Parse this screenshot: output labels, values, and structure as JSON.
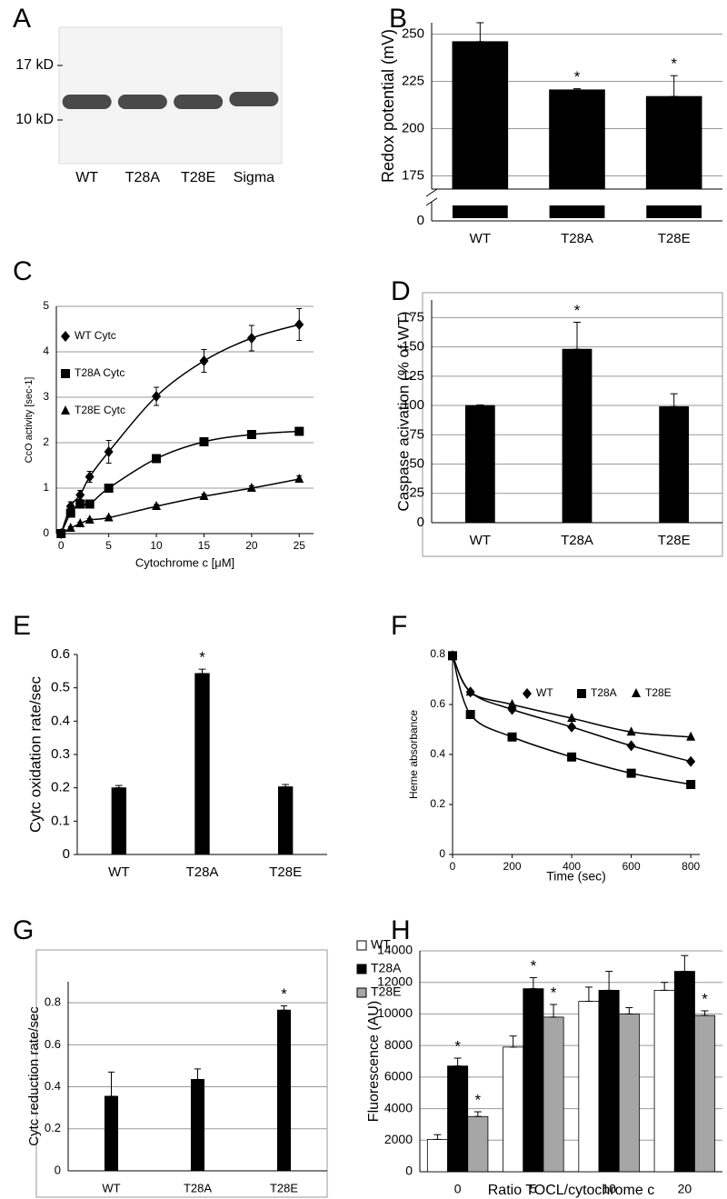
{
  "chart_data": [
    {
      "type": "blot",
      "panel": "A",
      "markers": [
        "17 kD",
        "10 kD"
      ],
      "categories": [
        "WT",
        "T28A",
        "T28E",
        "Sigma"
      ]
    },
    {
      "type": "bar",
      "panel": "B",
      "y_label": "Redox potential (mV)",
      "categories": [
        "WT",
        "T28A",
        "T28E"
      ],
      "values": [
        246,
        220.5,
        217
      ],
      "errors": [
        10,
        0.6,
        11
      ],
      "significance": [
        null,
        "*",
        "*"
      ],
      "color": "#000000",
      "ylim": [
        168,
        256
      ],
      "yticks": [
        0,
        175,
        200,
        225,
        250
      ],
      "axis_break": true,
      "grid": true
    },
    {
      "type": "scatter",
      "panel": "C",
      "x_label": "Cytochrome c [μM]",
      "y_label": "CcO activity [sec-1]",
      "x": [
        0,
        1,
        2,
        3,
        5,
        10,
        15,
        20,
        25
      ],
      "series": [
        {
          "name": "WT Cytc",
          "marker": "diamond",
          "color": "#000000",
          "values": [
            0,
            0.6,
            0.85,
            1.25,
            1.8,
            3.02,
            3.8,
            4.3,
            4.6
          ],
          "errors": [
            0.05,
            0.1,
            0.1,
            0.12,
            0.25,
            0.2,
            0.25,
            0.28,
            0.35
          ]
        },
        {
          "name": "T28A Cytc",
          "marker": "square",
          "color": "#000000",
          "values": [
            0,
            0.45,
            0.65,
            0.65,
            1.0,
            1.65,
            2.02,
            2.18,
            2.25
          ],
          "errors": [
            0.03,
            0.05,
            0.05,
            0.05,
            0.05,
            0.05,
            0.05,
            0.05,
            0.06
          ]
        },
        {
          "name": "T28E Cytc",
          "marker": "triangle",
          "color": "#000000",
          "values": [
            0,
            0.12,
            0.22,
            0.3,
            0.35,
            0.6,
            0.82,
            1.0,
            1.2
          ],
          "errors": [
            0.02,
            0.03,
            0.03,
            0.03,
            0.03,
            0.04,
            0.05,
            0.05,
            0.07
          ]
        }
      ],
      "xlim": [
        -0.5,
        26.5
      ],
      "xticks": [
        0,
        5,
        10,
        15,
        20,
        25
      ],
      "ylim": [
        0,
        5
      ],
      "yticks": [
        0,
        1,
        2,
        3,
        4,
        5
      ],
      "grid": true,
      "legend": "upper left"
    },
    {
      "type": "bar",
      "panel": "D",
      "y_label": "Caspase acivation (% of WT)",
      "categories": [
        "WT",
        "T28A",
        "T28E"
      ],
      "values": [
        100,
        148,
        99
      ],
      "errors": [
        0.5,
        23,
        11
      ],
      "significance": [
        null,
        "*",
        null
      ],
      "color": "#000000",
      "ylim": [
        0,
        190
      ],
      "yticks": [
        0,
        25,
        50,
        75,
        100,
        125,
        150,
        175
      ],
      "grid": true,
      "frame": true
    },
    {
      "type": "bar",
      "panel": "E",
      "y_label": "Cytc oxidation rate/sec",
      "categories": [
        "WT",
        "T28A",
        "T28E"
      ],
      "values": [
        0.2,
        0.543,
        0.203
      ],
      "errors": [
        0.007,
        0.013,
        0.007
      ],
      "significance": [
        null,
        "*",
        null
      ],
      "color": "#000000",
      "ylim": [
        0,
        0.6
      ],
      "yticks": [
        0,
        0.1,
        0.2,
        0.3,
        0.4,
        0.5,
        0.6
      ],
      "grid": false
    },
    {
      "type": "line",
      "panel": "F",
      "x_label": "Time (sec)",
      "y_label": "Heme absorbance",
      "x": [
        0,
        60,
        200,
        400,
        600,
        800
      ],
      "series": [
        {
          "name": "WT",
          "marker": "diamond",
          "color": "#000000",
          "values": [
            0.795,
            0.65,
            0.58,
            0.51,
            0.435,
            0.372
          ]
        },
        {
          "name": "T28A",
          "marker": "square",
          "color": "#000000",
          "values": [
            0.795,
            0.56,
            0.47,
            0.39,
            0.325,
            0.28
          ]
        },
        {
          "name": "T28E",
          "marker": "triangle",
          "color": "#000000",
          "values": [
            0.795,
            0.65,
            0.6,
            0.545,
            0.49,
            0.47
          ]
        }
      ],
      "xlim": [
        0,
        830
      ],
      "xticks": [
        0,
        200,
        400,
        600,
        800
      ],
      "ylim": [
        0,
        0.8
      ],
      "yticks": [
        0,
        0.2,
        0.4,
        0.6,
        0.8
      ],
      "grid": false,
      "legend": "upper center"
    },
    {
      "type": "bar",
      "panel": "G",
      "y_label": "Cytc reduction rate/sec",
      "categories": [
        "WT",
        "T28A",
        "T28E"
      ],
      "values": [
        0.355,
        0.435,
        0.765
      ],
      "errors": [
        0.115,
        0.05,
        0.02
      ],
      "significance": [
        null,
        null,
        "*"
      ],
      "color": "#000000",
      "ylim": [
        0,
        0.9
      ],
      "yticks": [
        0,
        0.2,
        0.4,
        0.6,
        0.8
      ],
      "grid": true,
      "frame": true
    },
    {
      "type": "bar",
      "panel": "H",
      "x_label": "Ratio TOCL/cytochrome c",
      "y_label": "Fluorescence (AU)",
      "categories": [
        "0",
        "5",
        "10",
        "20"
      ],
      "series": [
        {
          "name": "WT",
          "color": "#ffffff",
          "values": [
            2050,
            7900,
            10800,
            11500
          ],
          "errors": [
            300,
            700,
            900,
            500
          ],
          "significance": [
            null,
            null,
            null,
            null
          ]
        },
        {
          "name": "T28A",
          "color": "#000000",
          "values": [
            6700,
            11600,
            11500,
            12700
          ],
          "errors": [
            500,
            700,
            1200,
            1000
          ],
          "significance": [
            "*",
            "*",
            null,
            null
          ]
        },
        {
          "name": "T28E",
          "color": "#a6a6a6",
          "values": [
            3500,
            9800,
            10000,
            9900
          ],
          "errors": [
            300,
            800,
            400,
            300
          ],
          "significance": [
            "*",
            "*",
            null,
            "*"
          ]
        }
      ],
      "ylim": [
        0,
        14000
      ],
      "yticks": [
        0,
        2000,
        4000,
        6000,
        8000,
        10000,
        12000,
        14000
      ],
      "grid": true,
      "legend": "upper left"
    }
  ]
}
